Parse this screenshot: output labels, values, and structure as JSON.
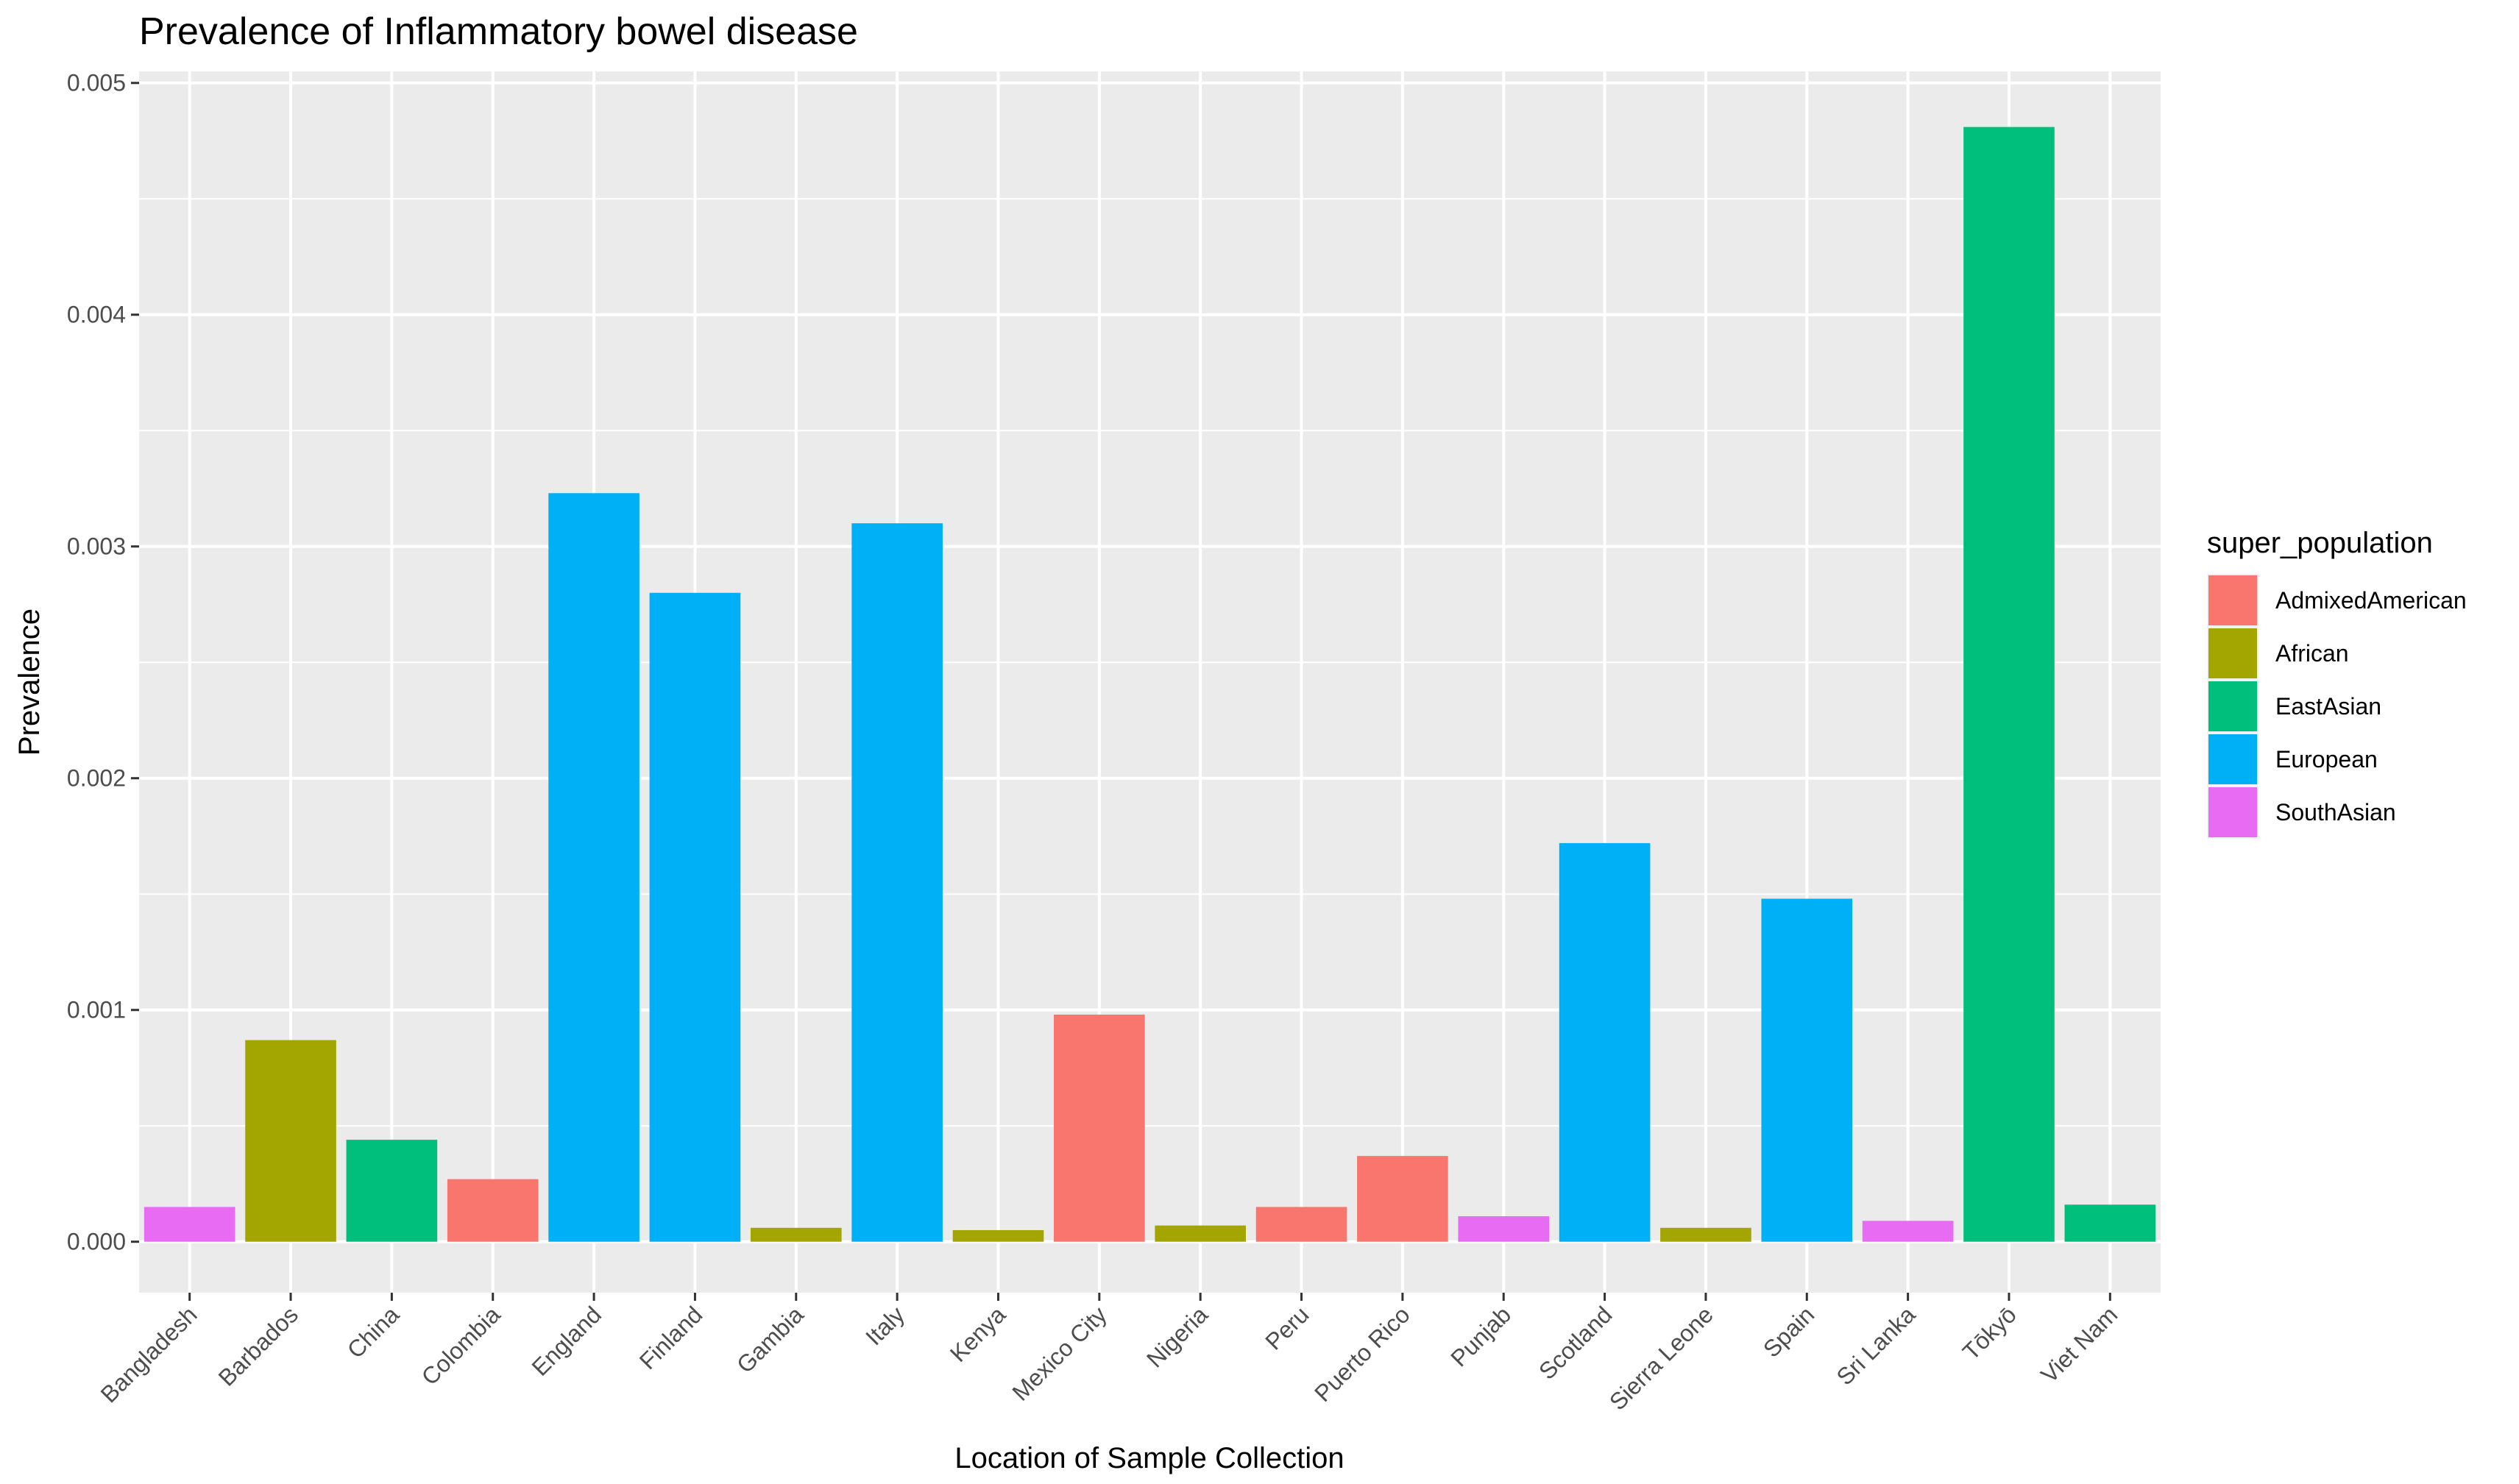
{
  "chart_data": {
    "type": "bar",
    "title": "Prevalence of Inflammatory bowel disease",
    "xlabel": "Location of Sample Collection",
    "ylabel": "Prevalence",
    "ylim": [
      -0.00022,
      0.00505
    ],
    "yticks": [
      0.0,
      0.001,
      0.002,
      0.003,
      0.004,
      0.005
    ],
    "ytick_labels": [
      "0.000",
      "0.001",
      "0.002",
      "0.003",
      "0.004",
      "0.005"
    ],
    "grid": true,
    "legend": {
      "title": "super_population",
      "position": "right",
      "entries": [
        {
          "name": "AdmixedAmerican",
          "color": "#F8766D"
        },
        {
          "name": "African",
          "color": "#A3A500"
        },
        {
          "name": "EastAsian",
          "color": "#00BF7D"
        },
        {
          "name": "European",
          "color": "#00B0F6"
        },
        {
          "name": "SouthAsian",
          "color": "#E76BF3"
        }
      ]
    },
    "categories": [
      "Bangladesh",
      "Barbados",
      "China",
      "Colombia",
      "England",
      "Finland",
      "Gambia",
      "Italy",
      "Kenya",
      "Mexico City",
      "Nigeria",
      "Peru",
      "Puerto Rico",
      "Punjab",
      "Scotland",
      "Sierra Leone",
      "Spain",
      "Sri Lanka",
      "Tōkyō",
      "Viet Nam"
    ],
    "values": [
      0.00015,
      0.00087,
      0.00044,
      0.00027,
      0.00323,
      0.0028,
      6e-05,
      0.0031,
      5e-05,
      0.00098,
      7e-05,
      0.00015,
      0.00037,
      0.00011,
      0.00172,
      6e-05,
      0.00148,
      9e-05,
      0.00481,
      0.00016
    ],
    "groups": [
      "SouthAsian",
      "African",
      "EastAsian",
      "AdmixedAmerican",
      "European",
      "European",
      "African",
      "European",
      "African",
      "AdmixedAmerican",
      "African",
      "AdmixedAmerican",
      "AdmixedAmerican",
      "SouthAsian",
      "European",
      "African",
      "European",
      "SouthAsian",
      "EastAsian",
      "EastAsian"
    ],
    "panel_background": "#EBEBEB",
    "grid_color": "#FFFFFF"
  }
}
